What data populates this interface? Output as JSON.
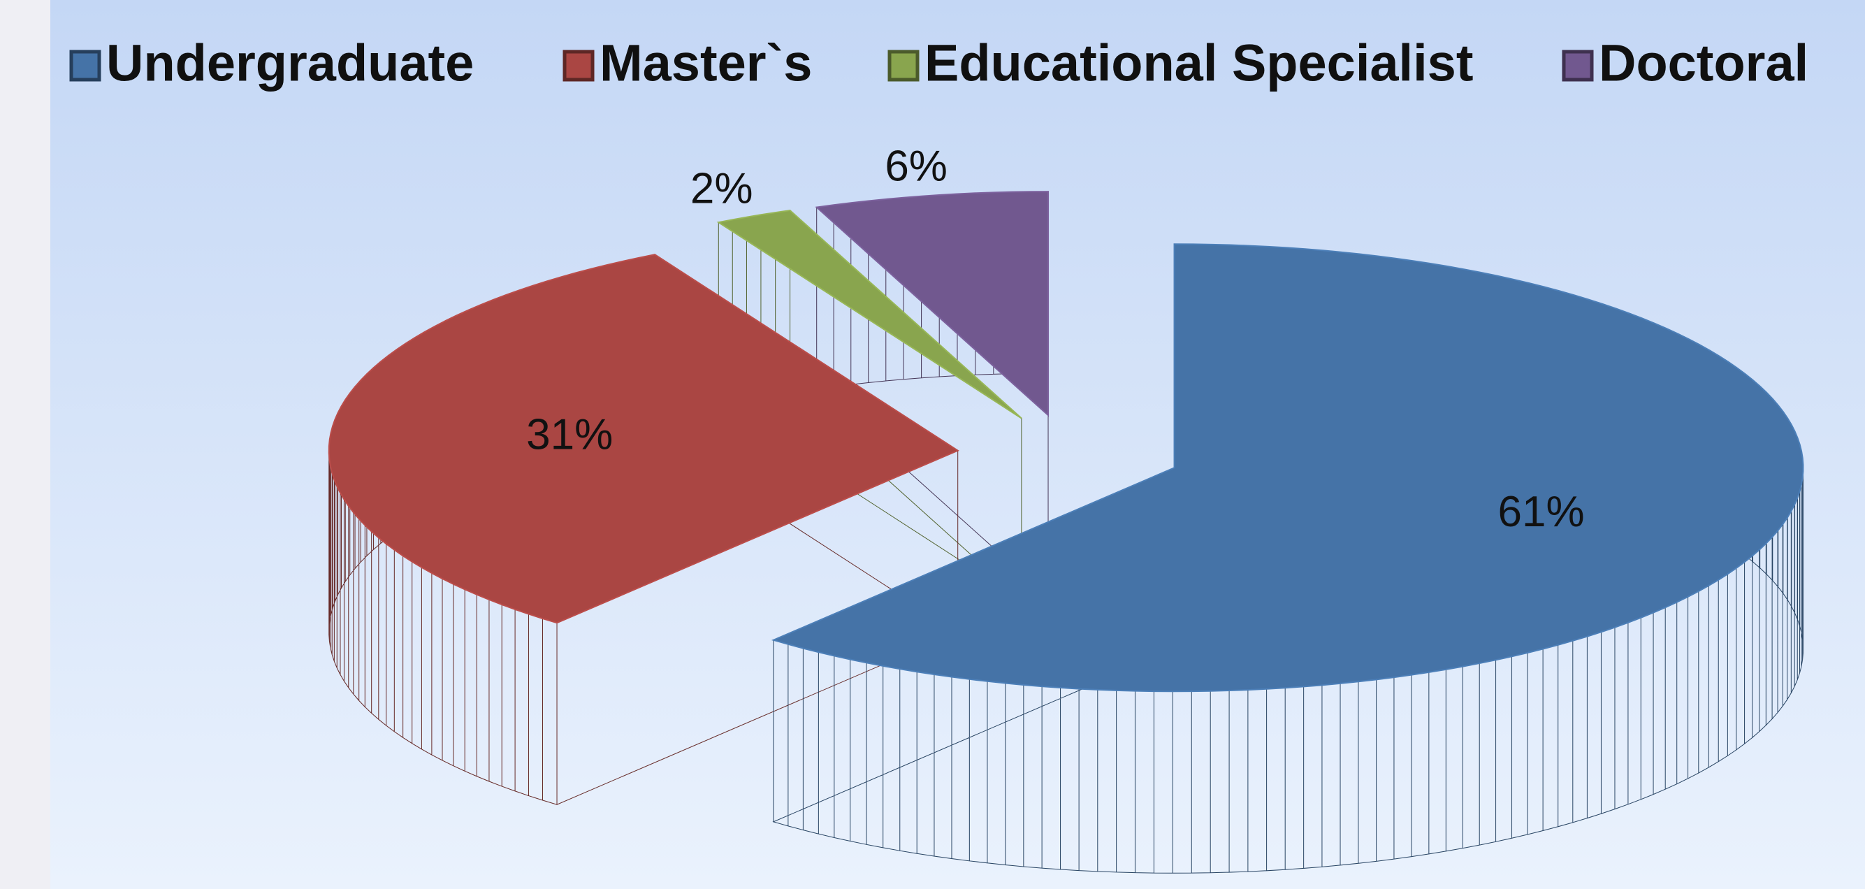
{
  "chart_data": {
    "type": "pie",
    "legend": "top",
    "three_d": true,
    "exploded": true,
    "categories": [
      "Undergraduate",
      "Master`s",
      "Educational Specialist",
      "Doctoral"
    ],
    "values": [
      61,
      31,
      2,
      6
    ],
    "value_labels": [
      "61%",
      "31%",
      "2%",
      "6%"
    ],
    "colors": [
      "#4573a7",
      "#aa4643",
      "#89a54e",
      "#71588f"
    ]
  }
}
